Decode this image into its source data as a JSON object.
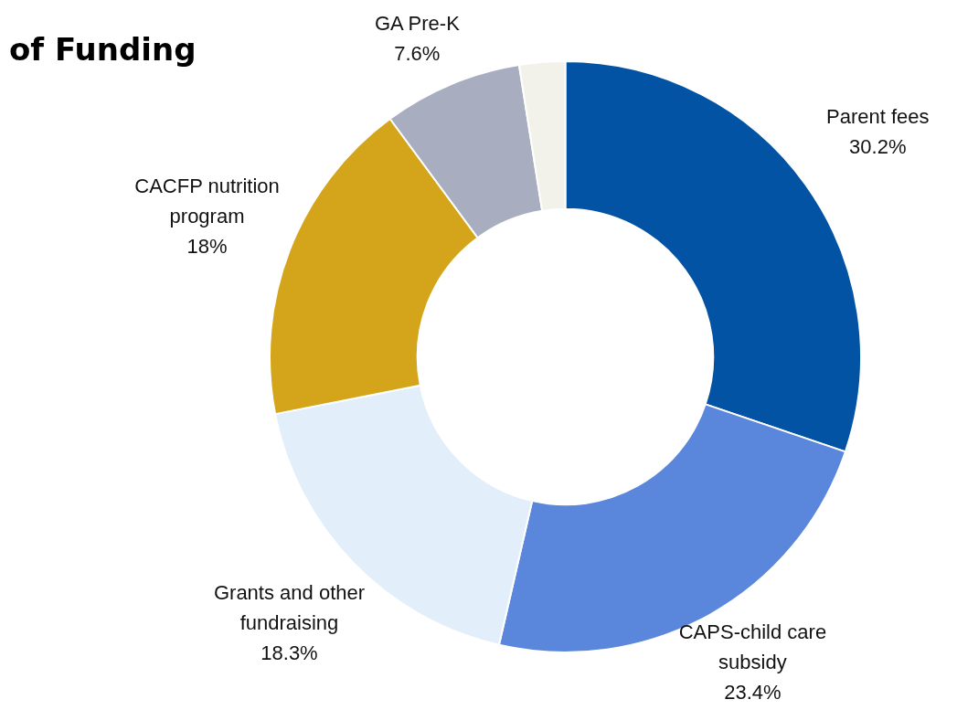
{
  "chart_data": {
    "type": "donut",
    "title": "of Funding",
    "categories": [
      "Parent fees",
      "CAPS-child care subsidy",
      "Grants and other fundraising",
      "CACFP nutrition program",
      "GA Pre-K",
      null
    ],
    "values": [
      30.2,
      23.4,
      18.3,
      18,
      7.6,
      2.5
    ],
    "colors": [
      "#0353a4",
      "#5a86db",
      "#e3eefb",
      "#d4a51a",
      "#a8adc0",
      "#f2f1ea"
    ],
    "value_labels": [
      "30.2%",
      "23.4%",
      "18.3%",
      "18%",
      "7.6%",
      null
    ],
    "legend": false
  }
}
